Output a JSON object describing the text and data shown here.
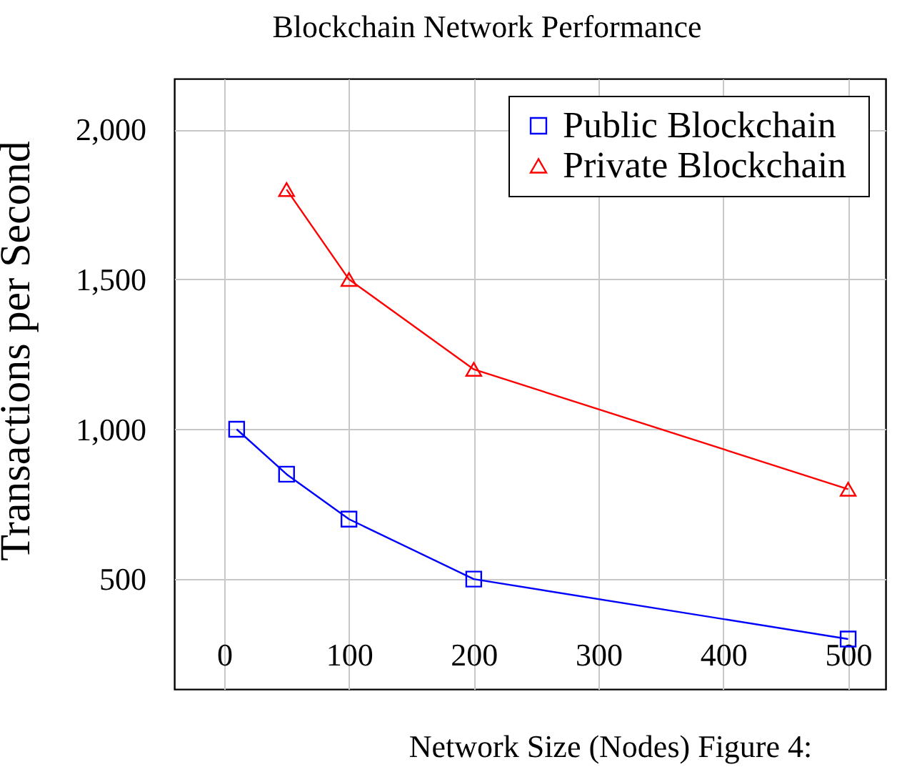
{
  "chart_data": {
    "type": "line",
    "title": "Blockchain Network Performance",
    "xlabel": "Network Size (Nodes) Figure 4:",
    "ylabel": "Transactions per Second",
    "x": [
      10,
      50,
      100,
      200,
      500
    ],
    "series": [
      {
        "name": "Public Blockchain",
        "color": "#0000ff",
        "marker": "square",
        "values": [
          1000,
          850,
          700,
          500,
          300
        ]
      },
      {
        "name": "Private  Blockchain",
        "color": "#ff0000",
        "marker": "triangle",
        "values": [
          null,
          1800,
          1500,
          1200,
          800
        ]
      }
    ],
    "xlim": [
      -40,
      530
    ],
    "xticks": [
      0,
      100,
      200,
      300,
      400,
      500
    ],
    "ylim": [
      133,
      2170
    ],
    "yticks": [
      {
        "value": 500,
        "label": "500"
      },
      {
        "value": 1000,
        "label": "1,000"
      },
      {
        "value": 1500,
        "label": "1,500"
      },
      {
        "value": 2000,
        "label": "2,000"
      }
    ],
    "grid": true,
    "legend": "top right",
    "line_style": "solid"
  }
}
